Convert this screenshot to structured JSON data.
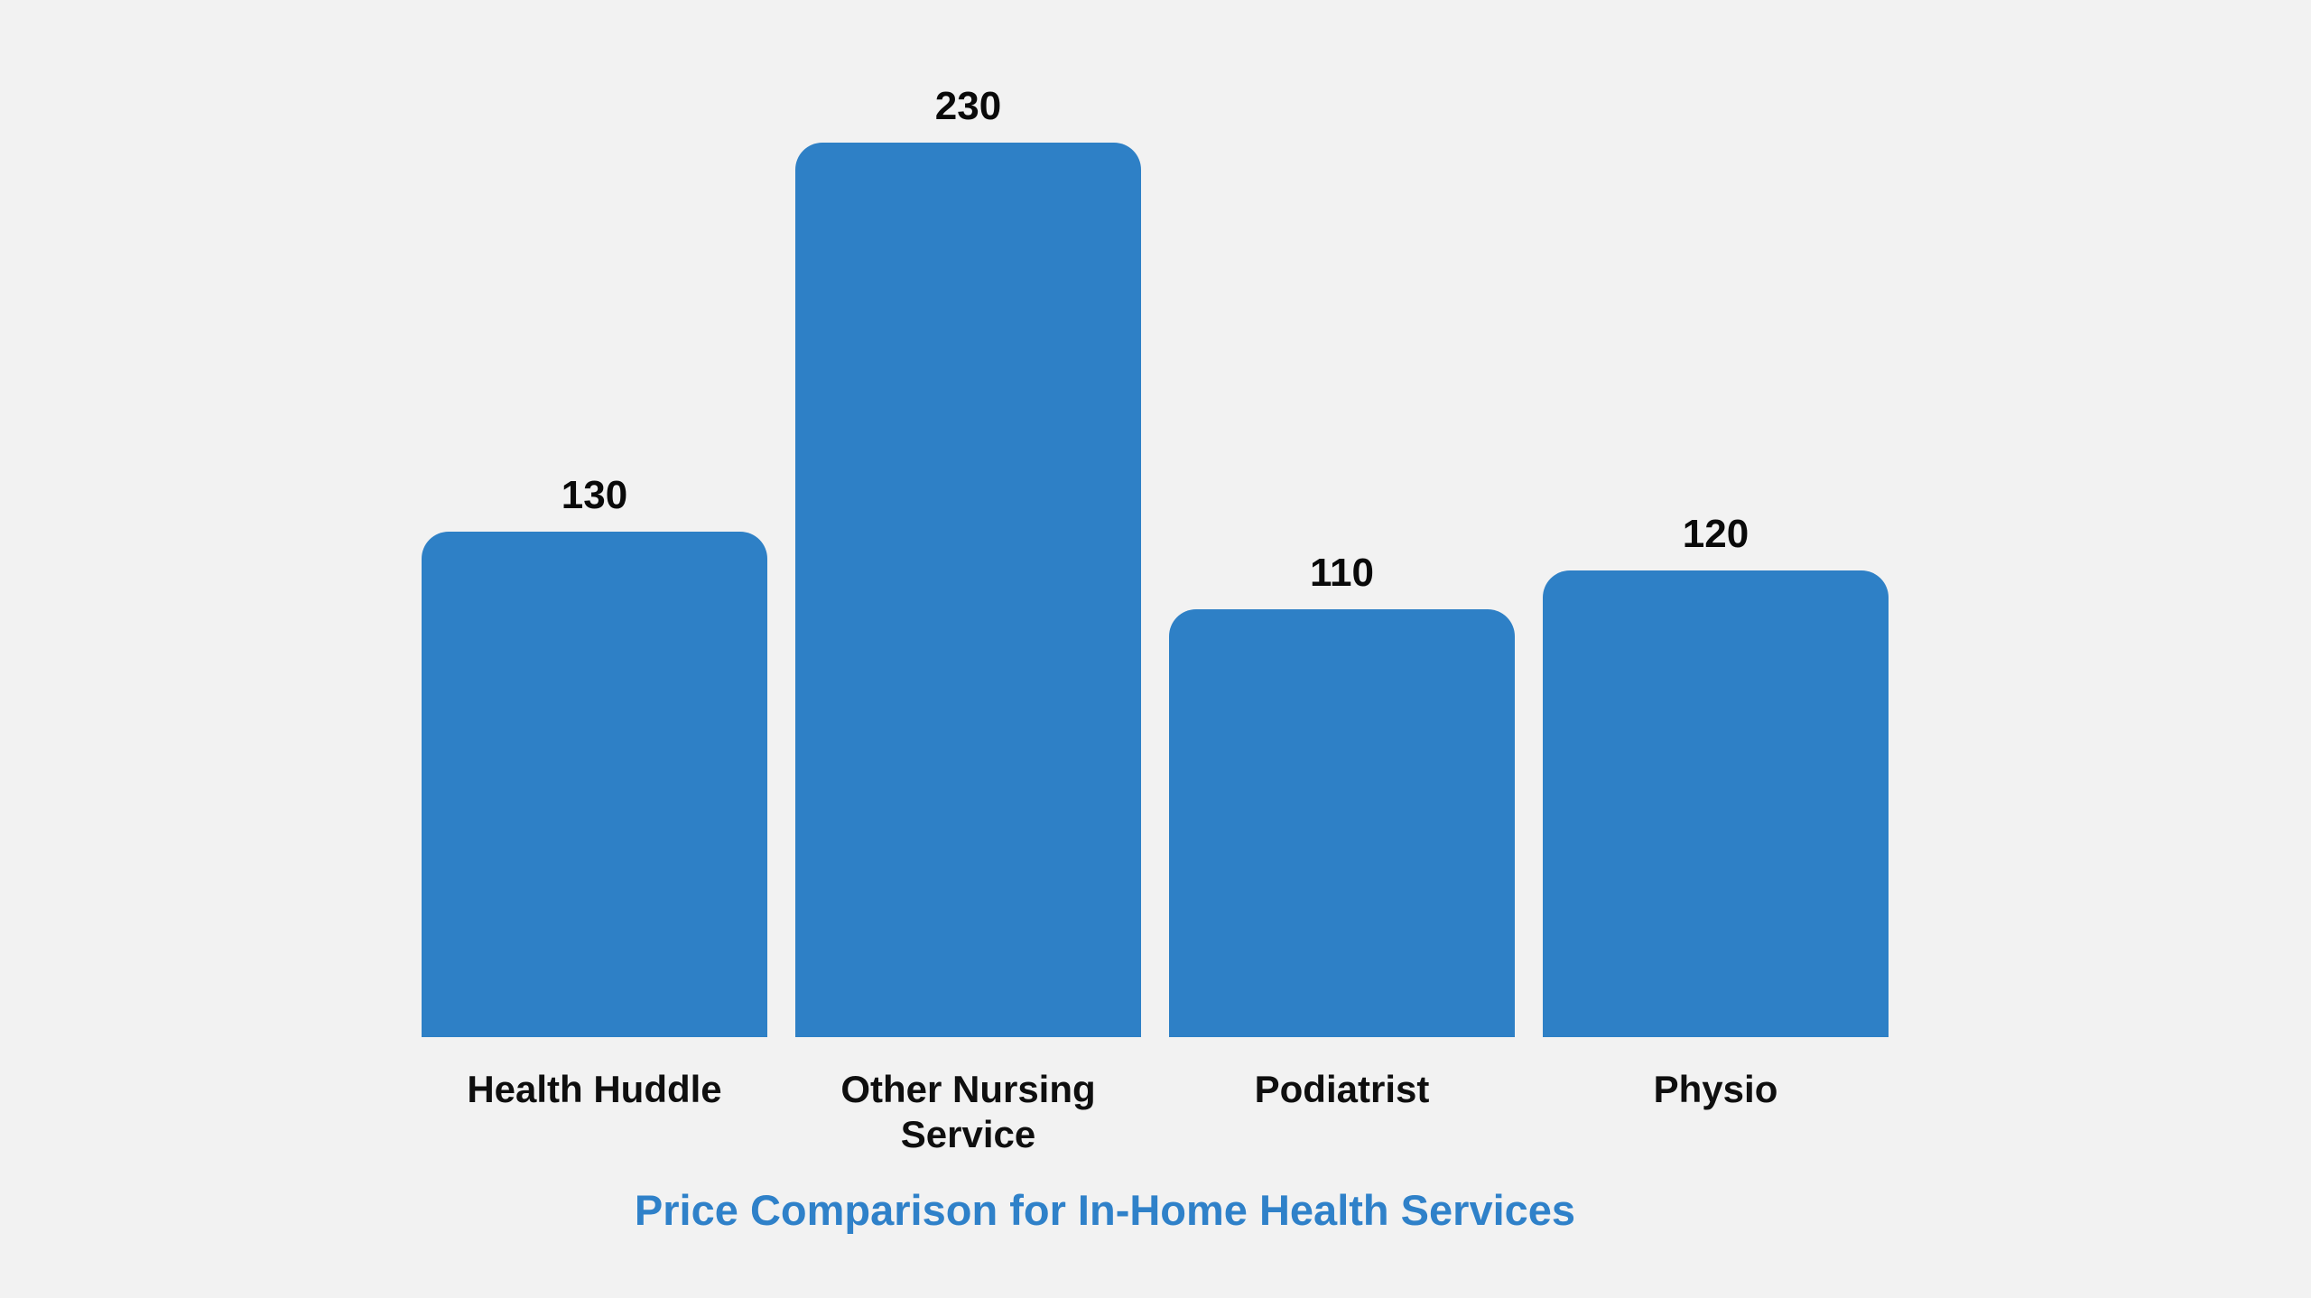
{
  "background_color": "#f2f2f2",
  "chart_data": {
    "type": "bar",
    "title": "Price Comparison for In-Home Health Services",
    "categories": [
      "Health Huddle",
      "Other Nursing Service",
      "Podiatrist",
      "Physio"
    ],
    "values": [
      130,
      230,
      110,
      120
    ],
    "value_labels": [
      "130",
      "230",
      "110",
      "120"
    ],
    "bar_color": "#2e80c6",
    "title_color": "#2f81c9",
    "value_label_color": "#0a0a0a",
    "category_label_color": "#0f0f0f",
    "xlabel": "",
    "ylabel": "",
    "ylim": [
      0,
      240
    ],
    "grid": false,
    "legend": false,
    "orientation": "vertical",
    "value_labels_position": "above-bars",
    "title_position": "bottom-center"
  }
}
